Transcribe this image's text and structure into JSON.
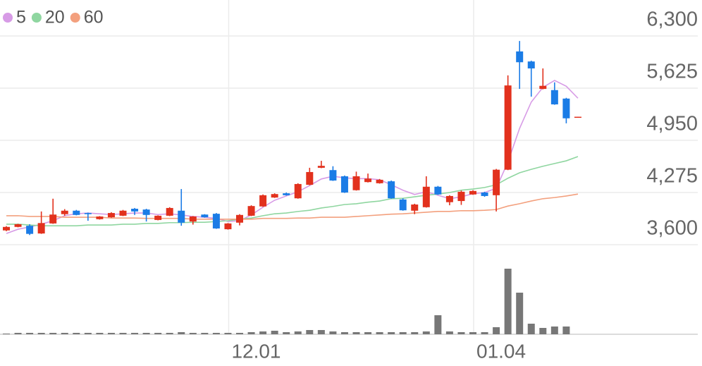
{
  "chart_data": {
    "type": "candlestick",
    "categories": [
      null,
      null,
      null,
      null,
      null,
      null,
      null,
      null,
      null,
      null,
      null,
      null,
      null,
      null,
      null,
      null,
      null,
      null,
      null,
      "12.01",
      null,
      null,
      null,
      null,
      null,
      null,
      null,
      null,
      null,
      null,
      null,
      null,
      null,
      null,
      null,
      null,
      null,
      null,
      null,
      null,
      "01.04",
      null,
      null,
      null,
      null,
      null,
      null,
      null,
      null,
      null
    ],
    "open": [
      3785,
      3830,
      3845,
      3745,
      3875,
      3995,
      4040,
      4010,
      3930,
      3955,
      3975,
      4065,
      4055,
      3920,
      3975,
      4040,
      3900,
      3990,
      4000,
      3800,
      3885,
      3975,
      4095,
      4210,
      4265,
      4200,
      4375,
      4595,
      4565,
      4485,
      4305,
      4410,
      4395,
      4420,
      4185,
      4040,
      4085,
      4350,
      4150,
      4165,
      4250,
      4275,
      4240,
      4570,
      6100,
      5970,
      5615,
      5600,
      5490,
      5250
    ],
    "high": [
      3840,
      3870,
      3865,
      4030,
      4195,
      4060,
      4050,
      4015,
      3970,
      4020,
      4050,
      4075,
      4065,
      3980,
      4085,
      4320,
      3970,
      3995,
      4010,
      3880,
      3995,
      4110,
      4250,
      4265,
      4275,
      4395,
      4595,
      4685,
      4615,
      4495,
      4545,
      4520,
      4450,
      4430,
      4200,
      4130,
      4485,
      4360,
      4240,
      4300,
      4305,
      4285,
      4580,
      5790,
      6235,
      5980,
      5880,
      5700,
      5500,
      5255
    ],
    "low": [
      3775,
      3825,
      3725,
      3740,
      3870,
      3975,
      3980,
      3910,
      3925,
      3950,
      3970,
      3985,
      3900,
      3915,
      3970,
      3845,
      3860,
      3950,
      3805,
      3795,
      3850,
      3970,
      4090,
      4205,
      4235,
      4195,
      4370,
      4590,
      4425,
      4270,
      4300,
      4405,
      4390,
      4195,
      4040,
      3995,
      4080,
      4245,
      4110,
      4115,
      4245,
      4220,
      4030,
      4565,
      5615,
      5515,
      5610,
      5410,
      5170,
      5245
    ],
    "close": [
      3830,
      3865,
      3740,
      3880,
      3990,
      4040,
      3985,
      3995,
      3965,
      4010,
      4040,
      4030,
      3985,
      3975,
      4075,
      3885,
      3965,
      3955,
      3810,
      3875,
      3985,
      4100,
      4240,
      4255,
      4240,
      4385,
      4540,
      4620,
      4430,
      4275,
      4485,
      4455,
      4440,
      4200,
      4045,
      4120,
      4350,
      4250,
      4230,
      4285,
      4295,
      4230,
      4570,
      5660,
      5960,
      5880,
      5655,
      5415,
      5235,
      5255
    ],
    "up_color": "#e2311d",
    "down_color": "#1b7ce6",
    "ylim": [
      3600,
      6300
    ],
    "yticks": [
      {
        "value": 6300,
        "label": "6,300"
      },
      {
        "value": 5625,
        "label": "5,625"
      },
      {
        "value": 4950,
        "label": "4,950"
      },
      {
        "value": 4275,
        "label": "4,275"
      },
      {
        "value": 3600,
        "label": "3,600"
      }
    ],
    "grid": true,
    "series": [
      {
        "name": "5",
        "color": "#d79be6",
        "values": [
          3745,
          3800,
          3830,
          3865,
          3910,
          3975,
          4000,
          4010,
          4000,
          3990,
          4000,
          4010,
          4010,
          3990,
          4000,
          3985,
          3965,
          3955,
          3940,
          3900,
          3910,
          3985,
          4085,
          4175,
          4230,
          4285,
          4365,
          4450,
          4485,
          4465,
          4455,
          4455,
          4440,
          4375,
          4305,
          4250,
          4285,
          4240,
          4195,
          4220,
          4260,
          4275,
          4330,
          4670,
          5105,
          5445,
          5635,
          5725,
          5650,
          5495
        ]
      },
      {
        "name": "20",
        "color": "#8fd6a0",
        "values": [
          3865,
          3865,
          3855,
          3845,
          3845,
          3845,
          3845,
          3855,
          3855,
          3855,
          3865,
          3865,
          3875,
          3875,
          3885,
          3885,
          3890,
          3890,
          3900,
          3910,
          3930,
          3945,
          3975,
          4000,
          4010,
          4030,
          4045,
          4075,
          4095,
          4120,
          4130,
          4150,
          4165,
          4195,
          4200,
          4220,
          4240,
          4255,
          4275,
          4305,
          4320,
          4340,
          4375,
          4460,
          4530,
          4575,
          4615,
          4650,
          4685,
          4740
        ]
      },
      {
        "name": "60",
        "color": "#f3a07e",
        "values": [
          3975,
          3975,
          3965,
          3965,
          3965,
          3955,
          3955,
          3955,
          3955,
          3945,
          3945,
          3945,
          3940,
          3940,
          3940,
          3940,
          3930,
          3930,
          3930,
          3930,
          3930,
          3930,
          3940,
          3940,
          3940,
          3945,
          3945,
          3955,
          3955,
          3955,
          3965,
          3975,
          3985,
          3995,
          4000,
          4010,
          4020,
          4030,
          4030,
          4040,
          4040,
          4045,
          4055,
          4100,
          4130,
          4165,
          4195,
          4210,
          4230,
          4255
        ]
      }
    ],
    "volume": {
      "color": "#777777",
      "ylim": [
        0,
        100
      ],
      "values": [
        1,
        2,
        2,
        2,
        2,
        2,
        2,
        2,
        2,
        2,
        2,
        2,
        2,
        2,
        2,
        3,
        2,
        2,
        2,
        2,
        2,
        3,
        4,
        5,
        3,
        4,
        6,
        6,
        4,
        3,
        3,
        3,
        3,
        3,
        3,
        3,
        4,
        27,
        4,
        3,
        3,
        3,
        10,
        93,
        59,
        15,
        9,
        11,
        11,
        0
      ]
    }
  }
}
